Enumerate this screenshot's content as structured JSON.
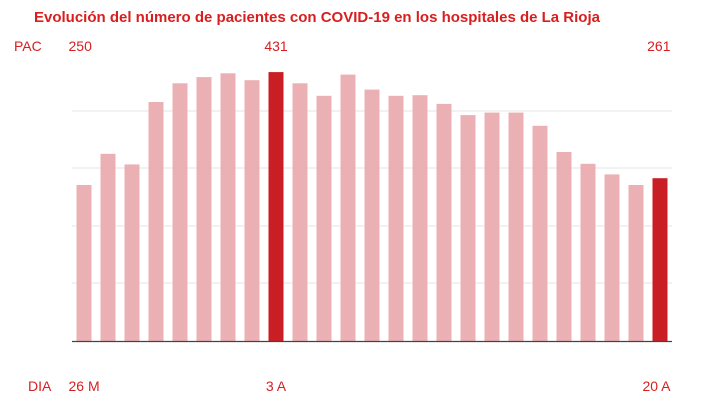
{
  "chart_data": {
    "type": "bar",
    "title": "Evolución del número de pacientes con COVID-19 en los hospitales de La Rioja",
    "ylabel": "PAC",
    "xlabel": "DIA",
    "top_labels": [
      {
        "index": 0,
        "text": "250"
      },
      {
        "index": 8,
        "text": "431"
      },
      {
        "index": 24,
        "text": "261"
      }
    ],
    "bottom_labels": [
      {
        "index": 0,
        "text": "26 M"
      },
      {
        "index": 8,
        "text": "3 A"
      },
      {
        "index": 24,
        "text": "20 A"
      }
    ],
    "values": [
      250,
      300,
      283,
      383,
      413,
      423,
      429,
      418,
      431,
      413,
      393,
      427,
      403,
      393,
      394,
      380,
      362,
      366,
      366,
      345,
      303,
      284,
      267,
      250,
      261
    ],
    "highlight_indices": [
      8,
      24
    ],
    "ylim": [
      0,
      460
    ],
    "grid": true,
    "colors": {
      "bar": "#ebb0b3",
      "highlight": "#c81e24",
      "text": "#d81e1e",
      "grid": "#e6e6e6",
      "axis": "#444444"
    }
  }
}
